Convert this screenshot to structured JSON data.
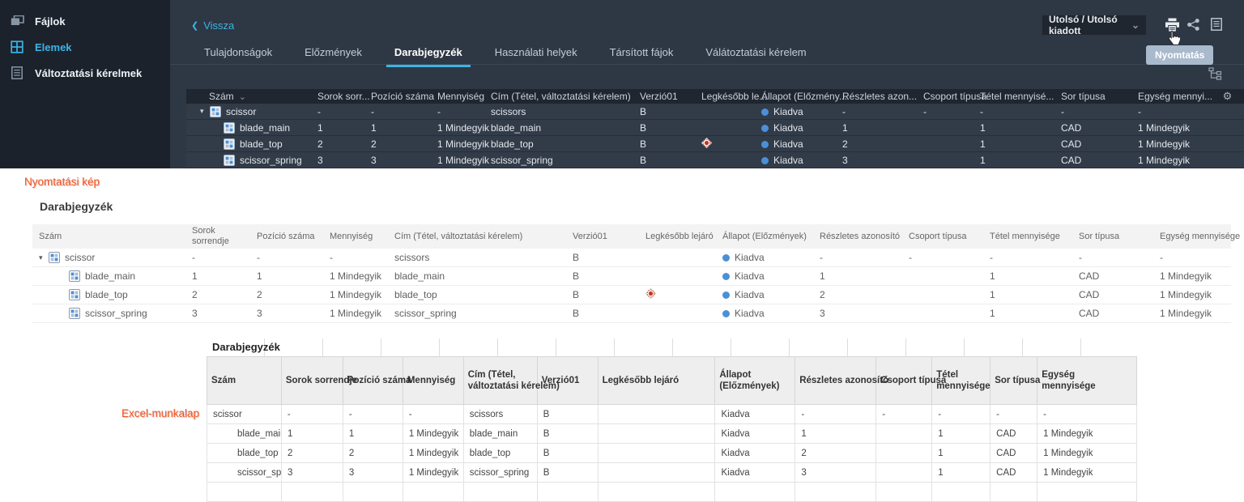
{
  "colors": {
    "accent_blue": "#3cb4e5",
    "annotation_orange": "#f25422",
    "released_status_blue": "#4a90d9",
    "expired_red": "#c8351f",
    "dark_panel": "#2e3744",
    "sidebar": "#1c222c"
  },
  "sidebar": {
    "items": [
      {
        "label": "Fájlok",
        "icon": "files-icon",
        "active": false
      },
      {
        "label": "Elemek",
        "icon": "elements-grid-icon",
        "active": true
      },
      {
        "label": "Változtatási kérelmek",
        "icon": "change-requests-list-icon",
        "active": false
      }
    ]
  },
  "toolbar": {
    "back_label": "Vissza",
    "version_selector_value": "Utolsó / Utolsó kiadott",
    "print_tooltip": "Nyomtatás",
    "icons": [
      "printer-icon",
      "share-icon",
      "clipboard-icon",
      "structure-tree-icon"
    ]
  },
  "tabs": [
    {
      "label": "Tulajdonságok",
      "active": false
    },
    {
      "label": "Előzmények",
      "active": false
    },
    {
      "label": "Darabjegyzék",
      "active": true
    },
    {
      "label": "Használati helyek",
      "active": false
    },
    {
      "label": "Társított fájok",
      "active": false
    },
    {
      "label": "Válátoztatási kérelem",
      "active": false
    }
  ],
  "bom_table": {
    "columns": [
      "Szám",
      "Sorok sorr...",
      "Pozíció száma",
      "Mennyiség",
      "Cím (Tétel, változtatási kérelem)",
      "Verzió01",
      "Legkésőbb le...",
      "Állapot (Előzmény...",
      "Részletes azon...",
      "Csoport típusa",
      "Tétel mennyisé...",
      "Sor típusa",
      "Egység mennyi...",
      "⚙"
    ]
  },
  "print_preview": {
    "annotation": "Nyomtatási kép",
    "title": "Darabjegyzék",
    "columns": [
      "Szám",
      "Sorok\nsorrendje",
      "Pozíció száma",
      "Mennyiség",
      "Cím (Tétel, változtatási kérelem)",
      "Verzió01",
      "Legkésőbb lejáró",
      "Állapot (Előzmények)",
      "Részletes azonosító",
      "Csoport típusa",
      "Tétel mennyisége",
      "Sor típusa",
      "Egység mennyisége"
    ]
  },
  "excel": {
    "annotation": "Excel-munkalap",
    "title": "Darabjegyzék",
    "columns": [
      "Szám",
      "Sorok sorrendje",
      "Pozíció száma",
      "Mennyiség",
      "Cím (Tétel,\nváltoztatási kérelem)",
      "Verzió01",
      "Legkésőbb lejáró",
      "Állapot\n(Előzmények)",
      "Részletes azonosító",
      "Csoport típusa",
      "Tétel\nmennyisége",
      "Sor típusa",
      "Egység\nmennyisége"
    ]
  },
  "rows": [
    {
      "name": "scissor",
      "indent": 0,
      "expander": true,
      "expired": false,
      "sorok": "-",
      "pozicio": "-",
      "mennyiseg": "-",
      "cim": "scissors",
      "verzio": "B",
      "allapot": "Kiadva",
      "reszletes": "-",
      "csoport": "-",
      "tetel": "-",
      "sor_tipusa": "-",
      "egyseg": "-"
    },
    {
      "name": "blade_main",
      "indent": 1,
      "expander": false,
      "expired": false,
      "sorok": "1",
      "pozicio": "1",
      "mennyiseg": "1 Mindegyik",
      "cim": "blade_main",
      "verzio": "B",
      "allapot": "Kiadva",
      "reszletes": "1",
      "csoport": "",
      "tetel": "1",
      "sor_tipusa": "CAD",
      "egyseg": "1 Mindegyik"
    },
    {
      "name": "blade_top",
      "indent": 1,
      "expander": false,
      "expired": true,
      "sorok": "2",
      "pozicio": "2",
      "mennyiseg": "1 Mindegyik",
      "cim": "blade_top",
      "verzio": "B",
      "allapot": "Kiadva",
      "reszletes": "2",
      "csoport": "",
      "tetel": "1",
      "sor_tipusa": "CAD",
      "egyseg": "1 Mindegyik"
    },
    {
      "name": "scissor_spring",
      "indent": 1,
      "expander": false,
      "expired": false,
      "sorok": "3",
      "pozicio": "3",
      "mennyiseg": "1 Mindegyik",
      "cim": "scissor_spring",
      "verzio": "B",
      "allapot": "Kiadva",
      "reszletes": "3",
      "csoport": "",
      "tetel": "1",
      "sor_tipusa": "CAD",
      "egyseg": "1 Mindegyik"
    }
  ]
}
